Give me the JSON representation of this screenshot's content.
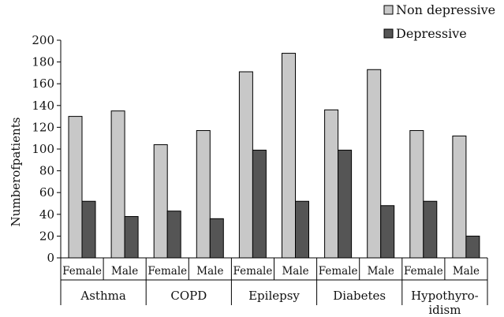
{
  "chart_data": {
    "type": "bar",
    "title": "",
    "xlabel": "",
    "ylabel": "Numberofpatients",
    "ylim": [
      0,
      200
    ],
    "yticks": [
      0,
      20,
      40,
      60,
      80,
      100,
      120,
      140,
      160,
      180,
      200
    ],
    "groups": [
      {
        "label_lines": [
          "Asthma"
        ],
        "subcategories": [
          "Female",
          "Male"
        ]
      },
      {
        "label_lines": [
          "COPD"
        ],
        "subcategories": [
          "Female",
          "Male"
        ]
      },
      {
        "label_lines": [
          "Epilepsy"
        ],
        "subcategories": [
          "Female",
          "Male"
        ]
      },
      {
        "label_lines": [
          "Diabetes"
        ],
        "subcategories": [
          "Female",
          "Male"
        ]
      },
      {
        "label_lines": [
          "Hypothyro-",
          "idism"
        ],
        "subcategories": [
          "Female",
          "Male"
        ]
      }
    ],
    "categories": [
      "Asthma Female",
      "Asthma Male",
      "COPD Female",
      "COPD Male",
      "Epilepsy Female",
      "Epilepsy Male",
      "Diabetes Female",
      "Diabetes Male",
      "Hypothyroidism Female",
      "Hypothyroidism Male"
    ],
    "series": [
      {
        "name": "Non depressive",
        "color": "#c8c8c8",
        "values": [
          130,
          135,
          104,
          117,
          171,
          188,
          136,
          173,
          117,
          112
        ]
      },
      {
        "name": "Depressive",
        "color": "#555555",
        "values": [
          52,
          38,
          43,
          36,
          99,
          52,
          99,
          48,
          52,
          20
        ]
      }
    ],
    "legend_position": "top-right",
    "grid": false
  }
}
